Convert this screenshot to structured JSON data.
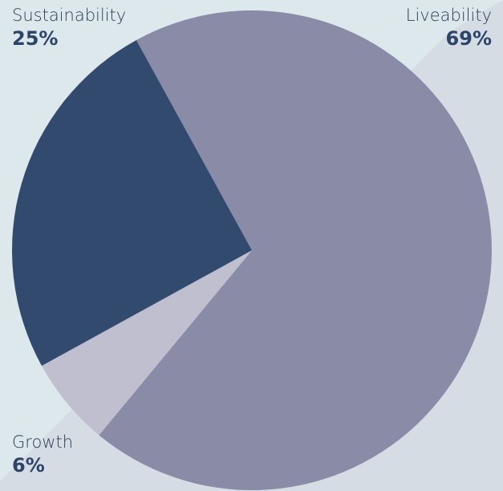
{
  "chart_data": {
    "type": "pie",
    "slices": [
      {
        "label": "Liveability",
        "percent_label": "69%",
        "value": 69,
        "color": "#8a8ca7"
      },
      {
        "label": "Growth",
        "percent_label": "6%",
        "value": 6,
        "color": "#bfbfd0"
      },
      {
        "label": "Sustainability",
        "percent_label": "25%",
        "value": 25,
        "color": "#334a6f"
      }
    ],
    "colors": {
      "background_light": "#dde8ec",
      "background_dark": "#d6dce4"
    }
  }
}
